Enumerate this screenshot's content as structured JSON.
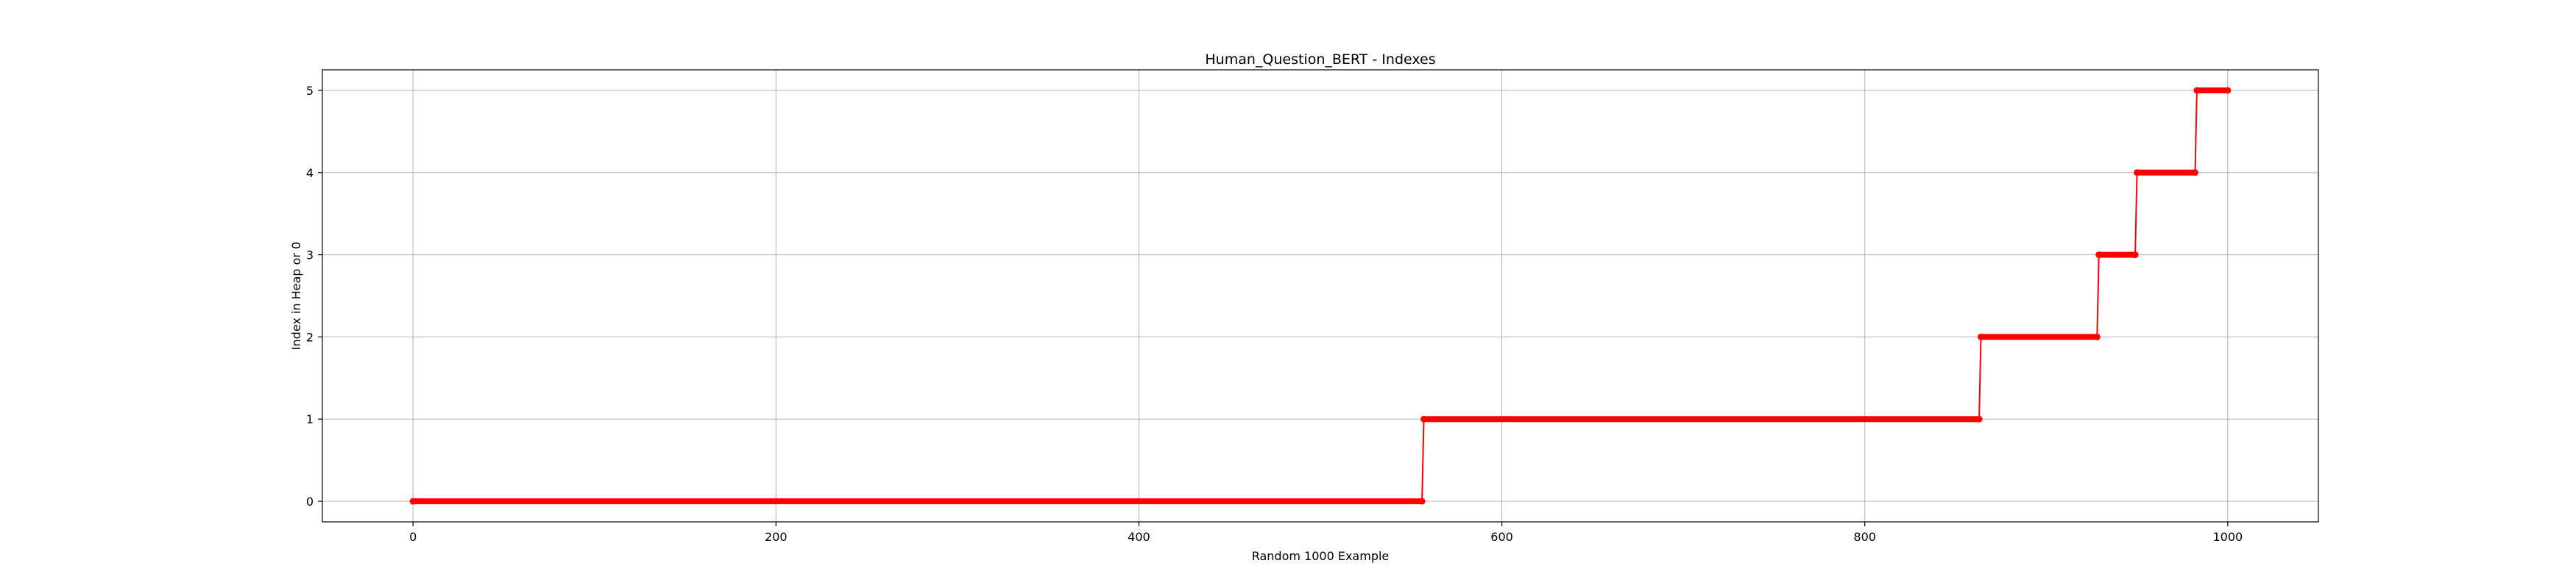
{
  "chart_data": {
    "type": "line",
    "title": "Human_Question_BERT - Indexes",
    "xlabel": "Random 1000 Example",
    "ylabel": "Index in Heap or 0",
    "xlim": [
      -49.95,
      1049.95
    ],
    "ylim": [
      -0.25,
      5.25
    ],
    "xticks": [
      0,
      200,
      400,
      600,
      800,
      1000
    ],
    "yticks": [
      0,
      1,
      2,
      3,
      4,
      5
    ],
    "grid": true,
    "series": [
      {
        "color": "#ff0000",
        "marker": "circle",
        "steps": [
          {
            "from": 0,
            "to": 556,
            "value": 0
          },
          {
            "from": 557,
            "to": 863,
            "value": 1
          },
          {
            "from": 864,
            "to": 928,
            "value": 2
          },
          {
            "from": 929,
            "to": 949,
            "value": 3
          },
          {
            "from": 950,
            "to": 982,
            "value": 4
          },
          {
            "from": 983,
            "to": 1000,
            "value": 5
          }
        ]
      }
    ]
  }
}
